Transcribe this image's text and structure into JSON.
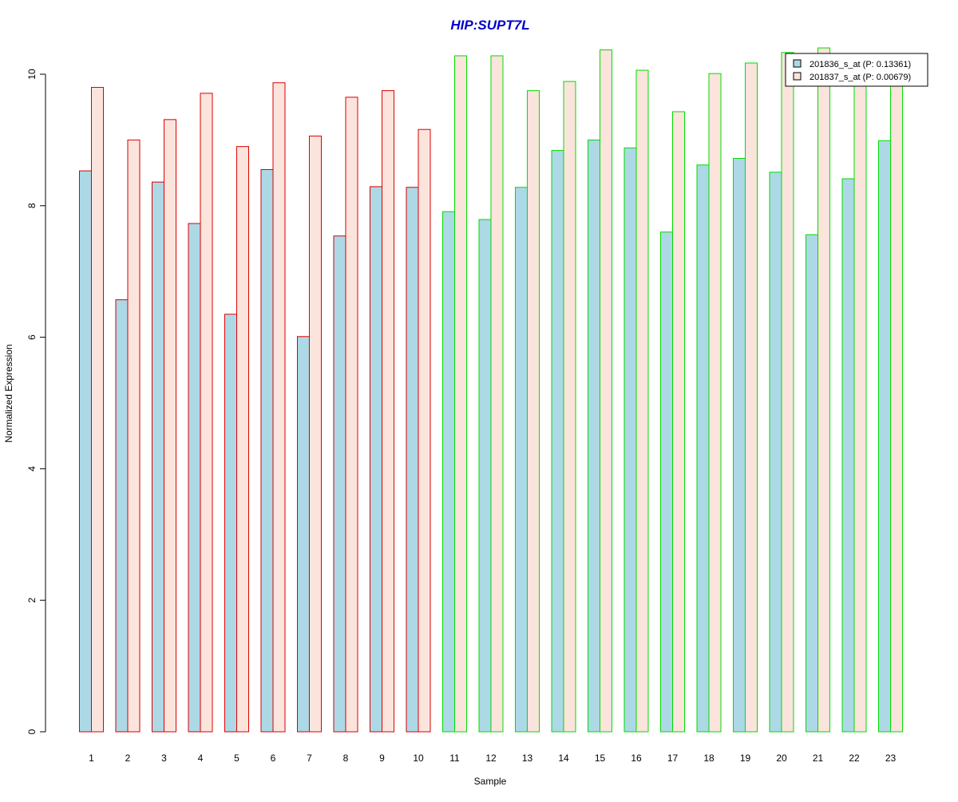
{
  "chart_data": {
    "type": "bar",
    "title": "HIP:SUPT7L",
    "xlabel": "Sample",
    "ylabel": "Normalized Expression",
    "ylim": [
      0,
      10.5
    ],
    "yticks": [
      0,
      2,
      4,
      6,
      8,
      10
    ],
    "grid": false,
    "legend_position": "top-right",
    "categories": [
      "1",
      "2",
      "3",
      "4",
      "5",
      "6",
      "7",
      "8",
      "9",
      "10",
      "11",
      "12",
      "13",
      "14",
      "15",
      "16",
      "17",
      "18",
      "19",
      "20",
      "21",
      "22",
      "23"
    ],
    "groups": [
      {
        "samples": [
          "1",
          "2",
          "3",
          "4",
          "5",
          "6",
          "7",
          "8",
          "9",
          "10"
        ],
        "border_color": "#dd0000"
      },
      {
        "samples": [
          "11",
          "12",
          "13",
          "14",
          "15",
          "16",
          "17",
          "18",
          "19",
          "20",
          "21",
          "22",
          "23"
        ],
        "border_color": "#00dd00"
      }
    ],
    "series": [
      {
        "name": "201836_s_at (P: 0.13361)",
        "fill": "#add8e6",
        "values": [
          8.53,
          6.57,
          8.36,
          7.73,
          6.35,
          8.55,
          6.01,
          7.54,
          8.29,
          8.28,
          7.91,
          7.79,
          8.28,
          8.84,
          9.0,
          8.88,
          7.6,
          8.62,
          8.72,
          8.51,
          7.56,
          8.41,
          8.99
        ]
      },
      {
        "name": "201837_s_at (P: 0.00679)",
        "fill": "#fbe4dc",
        "values": [
          9.8,
          9.0,
          9.31,
          9.71,
          8.9,
          9.87,
          9.06,
          9.65,
          9.75,
          9.16,
          10.28,
          10.28,
          9.75,
          9.89,
          10.37,
          10.06,
          9.43,
          10.01,
          10.17,
          10.33,
          10.4,
          10.0,
          10.01
        ]
      }
    ]
  }
}
